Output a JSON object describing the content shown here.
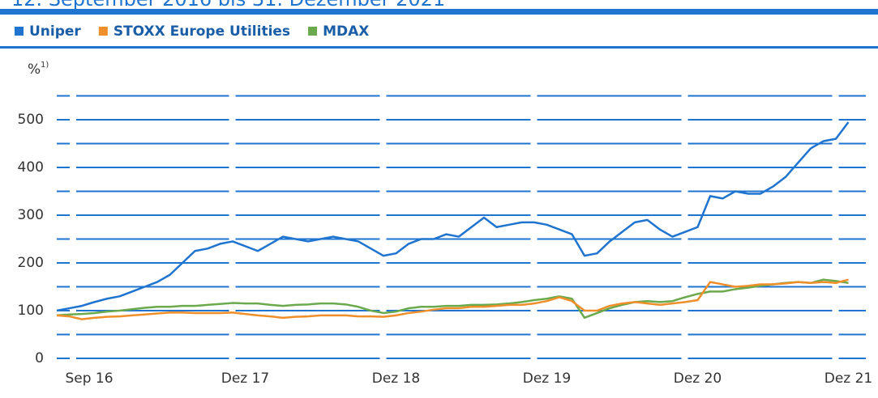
{
  "chart_data": {
    "type": "line",
    "title": "12. September 2016 bis 31. Dezember 2021",
    "ylabel": "%",
    "ylabel_note": "1)",
    "x": [
      "Sep 16",
      "Okt 16",
      "Nov 16",
      "Dez 16",
      "Jan 17",
      "Feb 17",
      "Mär 17",
      "Apr 17",
      "Mai 17",
      "Jun 17",
      "Jul 17",
      "Aug 17",
      "Sep 17",
      "Okt 17",
      "Nov 17",
      "Dez 17",
      "Jan 18",
      "Feb 18",
      "Mär 18",
      "Apr 18",
      "Mai 18",
      "Jun 18",
      "Jul 18",
      "Aug 18",
      "Sep 18",
      "Okt 18",
      "Nov 18",
      "Dez 18",
      "Jan 19",
      "Feb 19",
      "Mär 19",
      "Apr 19",
      "Mai 19",
      "Jun 19",
      "Jul 19",
      "Aug 19",
      "Sep 19",
      "Okt 19",
      "Nov 19",
      "Dez 19",
      "Jan 20",
      "Feb 20",
      "Mär 20",
      "Apr 20",
      "Mai 20",
      "Jun 20",
      "Jul 20",
      "Aug 20",
      "Sep 20",
      "Okt 20",
      "Nov 20",
      "Dez 20",
      "Jan 21",
      "Feb 21",
      "Mär 21",
      "Apr 21",
      "Mai 21",
      "Jun 21",
      "Jul 21",
      "Aug 21",
      "Sep 21",
      "Okt 21",
      "Nov 21",
      "Dez 21"
    ],
    "xticks": [
      "Sep 16",
      "Dez 17",
      "Dez 18",
      "Dez 19",
      "Dez 20",
      "Dez 21"
    ],
    "series": [
      {
        "name": "Uniper",
        "color": "#1f74cf",
        "values": [
          100,
          105,
          110,
          118,
          125,
          130,
          140,
          150,
          160,
          175,
          200,
          225,
          230,
          240,
          245,
          235,
          225,
          240,
          255,
          250,
          245,
          250,
          255,
          250,
          245,
          230,
          215,
          220,
          240,
          250,
          250,
          260,
          255,
          275,
          295,
          275,
          280,
          285,
          285,
          280,
          270,
          260,
          215,
          220,
          245,
          265,
          285,
          290,
          270,
          255,
          265,
          275,
          340,
          335,
          350,
          345,
          345,
          360,
          380,
          410,
          440,
          455,
          460,
          495
        ]
      },
      {
        "name": "STOXX Europe Utilities",
        "color": "#ef8f2b",
        "values": [
          90,
          88,
          82,
          85,
          87,
          88,
          90,
          92,
          94,
          96,
          96,
          95,
          95,
          95,
          96,
          93,
          90,
          88,
          85,
          87,
          88,
          90,
          90,
          90,
          88,
          88,
          87,
          90,
          95,
          98,
          102,
          105,
          105,
          108,
          108,
          110,
          112,
          112,
          115,
          120,
          128,
          120,
          100,
          100,
          110,
          115,
          118,
          115,
          112,
          115,
          118,
          122,
          160,
          155,
          150,
          152,
          155,
          155,
          157,
          160,
          158,
          160,
          158,
          165
        ]
      },
      {
        "name": "MDAX",
        "color": "#6aaa4c",
        "values": [
          90,
          92,
          93,
          95,
          98,
          100,
          103,
          106,
          108,
          108,
          110,
          110,
          112,
          114,
          116,
          115,
          115,
          112,
          110,
          112,
          113,
          115,
          115,
          113,
          108,
          100,
          95,
          98,
          105,
          108,
          108,
          110,
          110,
          112,
          112,
          113,
          115,
          118,
          122,
          125,
          130,
          125,
          85,
          95,
          105,
          112,
          118,
          120,
          118,
          120,
          128,
          135,
          140,
          140,
          145,
          148,
          152,
          155,
          158,
          160,
          158,
          165,
          162,
          158
        ]
      }
    ],
    "ylim": [
      0,
      560
    ],
    "yticks": [
      0,
      100,
      200,
      300,
      400,
      500
    ],
    "minor_yticks": [
      50,
      150,
      250,
      350,
      450,
      550
    ],
    "grid": true,
    "legend": "top-left"
  }
}
